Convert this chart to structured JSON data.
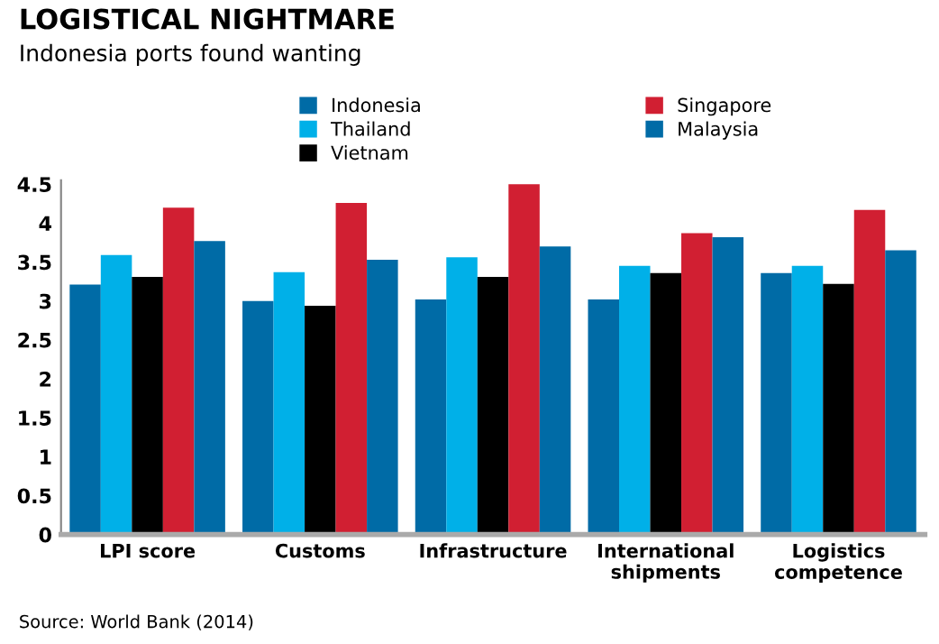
{
  "chart_data": {
    "type": "bar",
    "title": "LOGISTICAL NIGHTMARE",
    "subtitle": "Indonesia ports found wanting",
    "categories": [
      "LPI score",
      "Customs",
      "Infrastructure",
      "International\nshipments",
      "Logistics\ncompetence"
    ],
    "series": [
      {
        "name": "Indonesia",
        "color": "#006ba6",
        "values": [
          3.21,
          3.0,
          3.02,
          3.02,
          3.36
        ]
      },
      {
        "name": "Thailand",
        "color": "#00b0e8",
        "values": [
          3.59,
          3.37,
          3.56,
          3.45,
          3.45
        ]
      },
      {
        "name": "Vietnam",
        "color": "#000000",
        "values": [
          3.31,
          2.94,
          3.31,
          3.36,
          3.22
        ]
      },
      {
        "name": "Singapore",
        "color": "#d11f32",
        "values": [
          4.2,
          4.26,
          4.5,
          3.87,
          4.17
        ]
      },
      {
        "name": "Malaysia",
        "color": "#006ba6",
        "values": [
          3.77,
          3.53,
          3.7,
          3.82,
          3.65
        ]
      }
    ],
    "ylim": [
      0,
      4.55
    ],
    "yticks": [
      0,
      0.5,
      1,
      1.5,
      2,
      2.5,
      3,
      3.5,
      4,
      4.5
    ],
    "grid": false,
    "legend": "top",
    "annotations": [
      "Source: World Bank (2014)"
    ]
  }
}
